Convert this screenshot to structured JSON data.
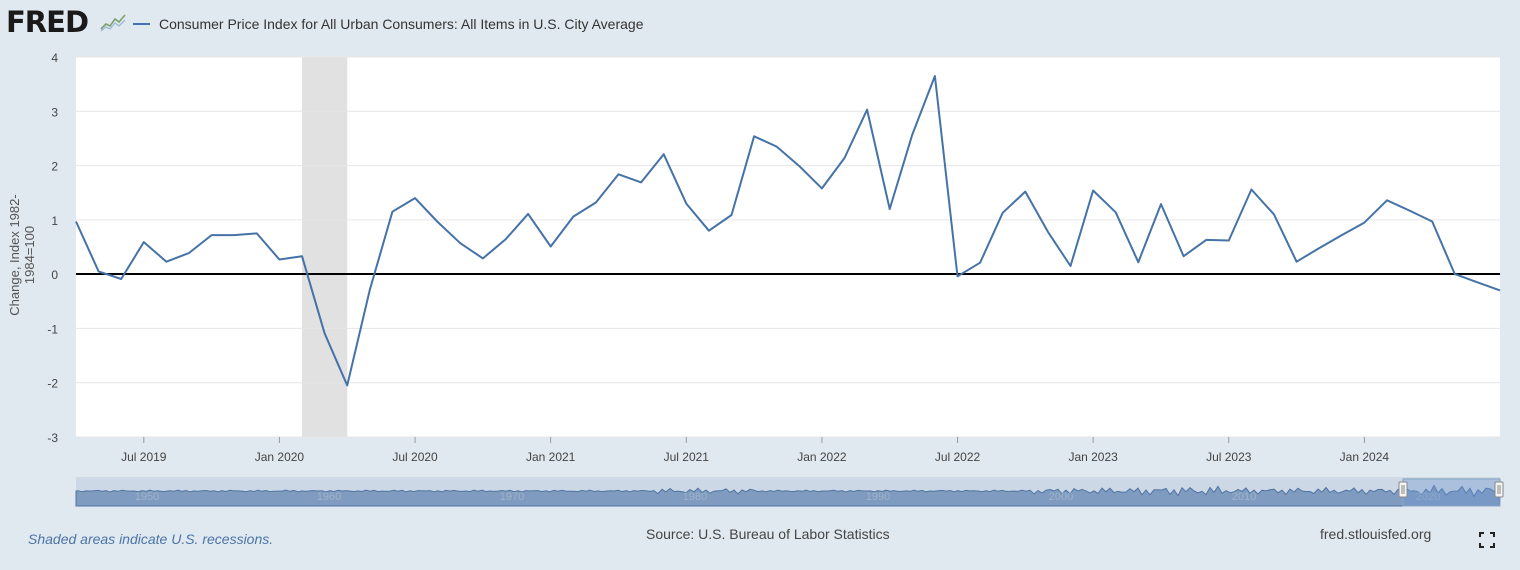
{
  "header": {
    "logo_text": "FRED",
    "legend_label": "Consumer Price Index for All Urban Consumers: All Items in U.S. City Average",
    "series_color": "#4572a7"
  },
  "footer": {
    "recession_note": "Shaded areas indicate U.S. recessions.",
    "source": "Source: U.S. Bureau of Labor Statistics",
    "site": "fred.stlouisfed.org"
  },
  "navigator": {
    "decade_labels": [
      "1950",
      "1960",
      "1970",
      "1980",
      "1990",
      "2000",
      "2010",
      "2020"
    ]
  },
  "chart_data": {
    "type": "line",
    "title": "",
    "ylabel": "Change, Index 1982-1984=100",
    "ylim": [
      -3,
      4
    ],
    "yticks": [
      "4",
      "3",
      "2",
      "1",
      "0",
      "-1",
      "-2",
      "-3"
    ],
    "xtick_labels": [
      "Jul 2019",
      "Jan 2020",
      "Jul 2020",
      "Jan 2021",
      "Jul 2021",
      "Jan 2022",
      "Jul 2022",
      "Jan 2023",
      "Jul 2023",
      "Jan 2024"
    ],
    "recession": {
      "start": "2020-02",
      "end": "2020-04"
    },
    "zero_line": true,
    "series": [
      {
        "name": "Consumer Price Index for All Urban Consumers: All Items in U.S. City Average",
        "x": [
          "2019-04",
          "2019-05",
          "2019-06",
          "2019-07",
          "2019-08",
          "2019-09",
          "2019-10",
          "2019-11",
          "2019-12",
          "2020-01",
          "2020-02",
          "2020-03",
          "2020-04",
          "2020-05",
          "2020-06",
          "2020-07",
          "2020-08",
          "2020-09",
          "2020-10",
          "2020-11",
          "2020-12",
          "2021-01",
          "2021-02",
          "2021-03",
          "2021-04",
          "2021-05",
          "2021-06",
          "2021-07",
          "2021-08",
          "2021-09",
          "2021-10",
          "2021-11",
          "2021-12",
          "2022-01",
          "2022-02",
          "2022-03",
          "2022-04",
          "2022-05",
          "2022-06",
          "2022-07",
          "2022-08",
          "2022-09",
          "2022-10",
          "2022-11",
          "2022-12",
          "2023-01",
          "2023-02",
          "2023-03",
          "2023-04",
          "2023-05",
          "2023-06",
          "2023-07",
          "2023-08",
          "2023-09",
          "2023-10",
          "2023-11",
          "2023-12",
          "2024-01",
          "2024-02",
          "2024-03",
          "2024-04",
          "2024-05",
          "2024-06",
          "2024-07"
        ],
        "values": [
          0.97,
          0.05,
          -0.09,
          0.59,
          0.23,
          0.39,
          0.72,
          0.72,
          0.75,
          0.27,
          0.33,
          -1.09,
          -2.05,
          -0.29,
          1.15,
          1.4,
          0.96,
          0.57,
          0.29,
          0.64,
          1.11,
          0.51,
          1.06,
          1.32,
          1.84,
          1.69,
          2.21,
          1.3,
          0.8,
          1.09,
          2.54,
          2.35,
          1.99,
          1.58,
          2.14,
          3.03,
          1.2,
          2.57,
          3.65,
          -0.04,
          0.21,
          1.13,
          1.52,
          0.78,
          0.15,
          1.54,
          1.14,
          0.22,
          1.29,
          0.33,
          0.63,
          0.62,
          1.56,
          1.1,
          0.23,
          0.48,
          0.72,
          0.95,
          1.36,
          1.17,
          0.97,
          0.0,
          -0.15,
          -0.3
        ]
      }
    ]
  }
}
